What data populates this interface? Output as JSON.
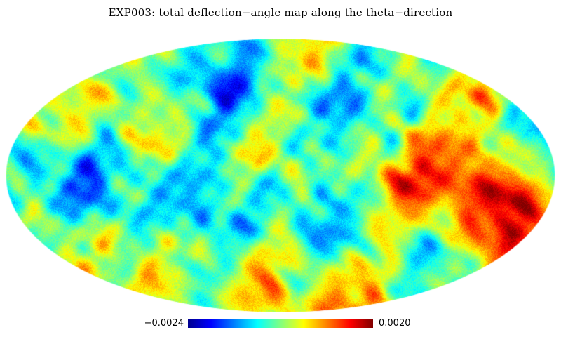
{
  "title": "EXP003: total deflection−angle map along the theta−direction",
  "map": {
    "projection": "mollweide",
    "colormap": "jet",
    "colormap_stops": [
      "#00008f",
      "#0000ff",
      "#0080ff",
      "#00ffff",
      "#80ff80",
      "#ffff00",
      "#ff8000",
      "#ff0000",
      "#800000"
    ],
    "background": "#ffffff"
  },
  "colorbar": {
    "min_label": "−0.0024",
    "max_label": "0.0020",
    "min_value": -0.0024,
    "max_value": 0.002
  }
}
